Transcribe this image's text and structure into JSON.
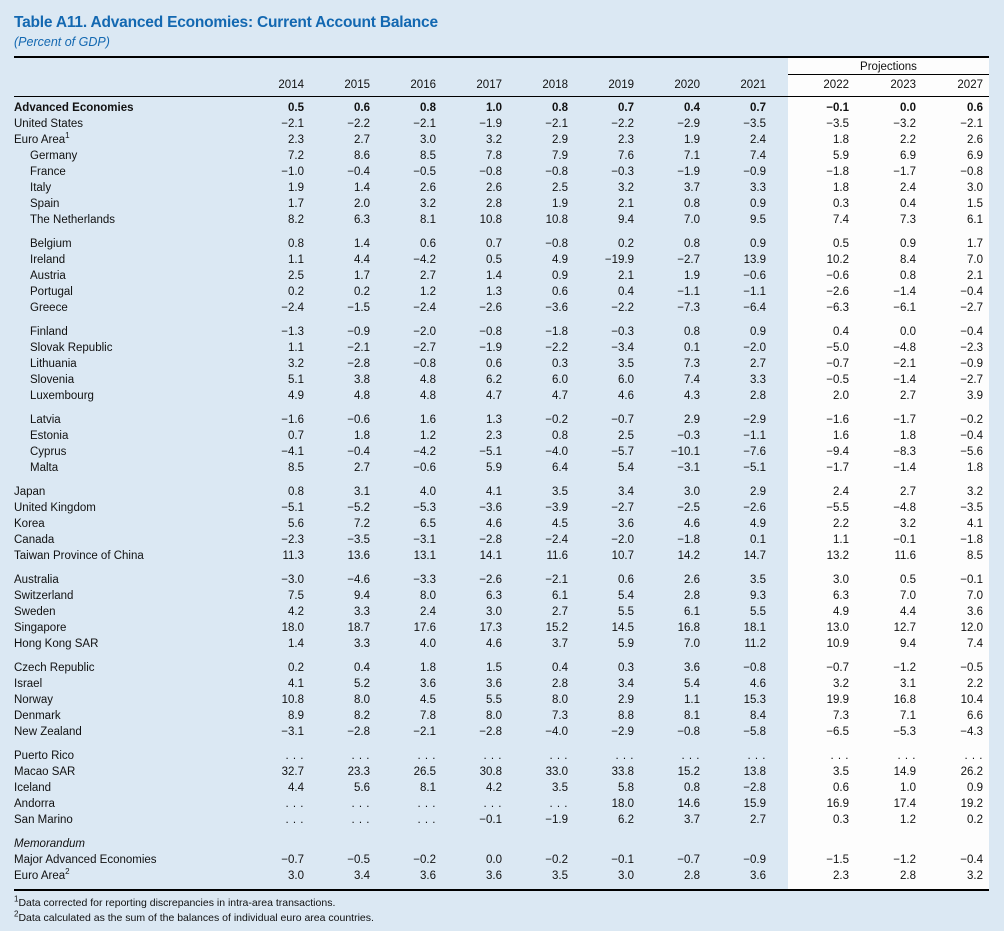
{
  "title": "Table A11. Advanced Economies: Current Account Balance",
  "subtitle": "(Percent of GDP)",
  "colors": {
    "page_background": "#dbe8f3",
    "projections_panel": "#fdfdfd",
    "title_accent": "#1368b1",
    "text": "#111111",
    "rule": "#000000"
  },
  "header": {
    "projections_label": "Projections",
    "years": [
      "2014",
      "2015",
      "2016",
      "2017",
      "2018",
      "2019",
      "2020",
      "2021"
    ],
    "projection_years": [
      "2022",
      "2023",
      "2027"
    ]
  },
  "table": {
    "columns": [
      "2014",
      "2015",
      "2016",
      "2017",
      "2018",
      "2019",
      "2020",
      "2021",
      "2022",
      "2023",
      "2027"
    ],
    "groups": [
      {
        "rows": [
          {
            "label": "Advanced Economies",
            "bold": true,
            "values": [
              "0.5",
              "0.6",
              "0.8",
              "1.0",
              "0.8",
              "0.7",
              "0.4",
              "0.7",
              "−0.1",
              "0.0",
              "0.6"
            ]
          },
          {
            "label": "United States",
            "values": [
              "−2.1",
              "−2.2",
              "−2.1",
              "−1.9",
              "−2.1",
              "−2.2",
              "−2.9",
              "−3.5",
              "−3.5",
              "−3.2",
              "−2.1"
            ]
          },
          {
            "label": "Euro Area",
            "sup": "1",
            "values": [
              "2.3",
              "2.7",
              "3.0",
              "3.2",
              "2.9",
              "2.3",
              "1.9",
              "2.4",
              "1.8",
              "2.2",
              "2.6"
            ]
          },
          {
            "label": "Germany",
            "indent": true,
            "values": [
              "7.2",
              "8.6",
              "8.5",
              "7.8",
              "7.9",
              "7.6",
              "7.1",
              "7.4",
              "5.9",
              "6.9",
              "6.9"
            ]
          },
          {
            "label": "France",
            "indent": true,
            "values": [
              "−1.0",
              "−0.4",
              "−0.5",
              "−0.8",
              "−0.8",
              "−0.3",
              "−1.9",
              "−0.9",
              "−1.8",
              "−1.7",
              "−0.8"
            ]
          },
          {
            "label": "Italy",
            "indent": true,
            "values": [
              "1.9",
              "1.4",
              "2.6",
              "2.6",
              "2.5",
              "3.2",
              "3.7",
              "3.3",
              "1.8",
              "2.4",
              "3.0"
            ]
          },
          {
            "label": "Spain",
            "indent": true,
            "values": [
              "1.7",
              "2.0",
              "3.2",
              "2.8",
              "1.9",
              "2.1",
              "0.8",
              "0.9",
              "0.3",
              "0.4",
              "1.5"
            ]
          },
          {
            "label": "The Netherlands",
            "indent": true,
            "values": [
              "8.2",
              "6.3",
              "8.1",
              "10.8",
              "10.8",
              "9.4",
              "7.0",
              "9.5",
              "7.4",
              "7.3",
              "6.1"
            ]
          }
        ]
      },
      {
        "rows": [
          {
            "label": "Belgium",
            "indent": true,
            "values": [
              "0.8",
              "1.4",
              "0.6",
              "0.7",
              "−0.8",
              "0.2",
              "0.8",
              "0.9",
              "0.5",
              "0.9",
              "1.7"
            ]
          },
          {
            "label": "Ireland",
            "indent": true,
            "values": [
              "1.1",
              "4.4",
              "−4.2",
              "0.5",
              "4.9",
              "−19.9",
              "−2.7",
              "13.9",
              "10.2",
              "8.4",
              "7.0"
            ]
          },
          {
            "label": "Austria",
            "indent": true,
            "values": [
              "2.5",
              "1.7",
              "2.7",
              "1.4",
              "0.9",
              "2.1",
              "1.9",
              "−0.6",
              "−0.6",
              "0.8",
              "2.1"
            ]
          },
          {
            "label": "Portugal",
            "indent": true,
            "values": [
              "0.2",
              "0.2",
              "1.2",
              "1.3",
              "0.6",
              "0.4",
              "−1.1",
              "−1.1",
              "−2.6",
              "−1.4",
              "−0.4"
            ]
          },
          {
            "label": "Greece",
            "indent": true,
            "values": [
              "−2.4",
              "−1.5",
              "−2.4",
              "−2.6",
              "−3.6",
              "−2.2",
              "−7.3",
              "−6.4",
              "−6.3",
              "−6.1",
              "−2.7"
            ]
          }
        ]
      },
      {
        "rows": [
          {
            "label": "Finland",
            "indent": true,
            "values": [
              "−1.3",
              "−0.9",
              "−2.0",
              "−0.8",
              "−1.8",
              "−0.3",
              "0.8",
              "0.9",
              "0.4",
              "0.0",
              "−0.4"
            ]
          },
          {
            "label": "Slovak Republic",
            "indent": true,
            "values": [
              "1.1",
              "−2.1",
              "−2.7",
              "−1.9",
              "−2.2",
              "−3.4",
              "0.1",
              "−2.0",
              "−5.0",
              "−4.8",
              "−2.3"
            ]
          },
          {
            "label": "Lithuania",
            "indent": true,
            "values": [
              "3.2",
              "−2.8",
              "−0.8",
              "0.6",
              "0.3",
              "3.5",
              "7.3",
              "2.7",
              "−0.7",
              "−2.1",
              "−0.9"
            ]
          },
          {
            "label": "Slovenia",
            "indent": true,
            "values": [
              "5.1",
              "3.8",
              "4.8",
              "6.2",
              "6.0",
              "6.0",
              "7.4",
              "3.3",
              "−0.5",
              "−1.4",
              "−2.7"
            ]
          },
          {
            "label": "Luxembourg",
            "indent": true,
            "values": [
              "4.9",
              "4.8",
              "4.8",
              "4.7",
              "4.7",
              "4.6",
              "4.3",
              "2.8",
              "2.0",
              "2.7",
              "3.9"
            ]
          }
        ]
      },
      {
        "rows": [
          {
            "label": "Latvia",
            "indent": true,
            "values": [
              "−1.6",
              "−0.6",
              "1.6",
              "1.3",
              "−0.2",
              "−0.7",
              "2.9",
              "−2.9",
              "−1.6",
              "−1.7",
              "−0.2"
            ]
          },
          {
            "label": "Estonia",
            "indent": true,
            "values": [
              "0.7",
              "1.8",
              "1.2",
              "2.3",
              "0.8",
              "2.5",
              "−0.3",
              "−1.1",
              "1.6",
              "1.8",
              "−0.4"
            ]
          },
          {
            "label": "Cyprus",
            "indent": true,
            "values": [
              "−4.1",
              "−0.4",
              "−4.2",
              "−5.1",
              "−4.0",
              "−5.7",
              "−10.1",
              "−7.6",
              "−9.4",
              "−8.3",
              "−5.6"
            ]
          },
          {
            "label": "Malta",
            "indent": true,
            "values": [
              "8.5",
              "2.7",
              "−0.6",
              "5.9",
              "6.4",
              "5.4",
              "−3.1",
              "−5.1",
              "−1.7",
              "−1.4",
              "1.8"
            ]
          }
        ]
      },
      {
        "rows": [
          {
            "label": "Japan",
            "values": [
              "0.8",
              "3.1",
              "4.0",
              "4.1",
              "3.5",
              "3.4",
              "3.0",
              "2.9",
              "2.4",
              "2.7",
              "3.2"
            ]
          },
          {
            "label": "United Kingdom",
            "values": [
              "−5.1",
              "−5.2",
              "−5.3",
              "−3.6",
              "−3.9",
              "−2.7",
              "−2.5",
              "−2.6",
              "−5.5",
              "−4.8",
              "−3.5"
            ]
          },
          {
            "label": "Korea",
            "values": [
              "5.6",
              "7.2",
              "6.5",
              "4.6",
              "4.5",
              "3.6",
              "4.6",
              "4.9",
              "2.2",
              "3.2",
              "4.1"
            ]
          },
          {
            "label": "Canada",
            "values": [
              "−2.3",
              "−3.5",
              "−3.1",
              "−2.8",
              "−2.4",
              "−2.0",
              "−1.8",
              "0.1",
              "1.1",
              "−0.1",
              "−1.8"
            ]
          },
          {
            "label": "Taiwan Province of China",
            "values": [
              "11.3",
              "13.6",
              "13.1",
              "14.1",
              "11.6",
              "10.7",
              "14.2",
              "14.7",
              "13.2",
              "11.6",
              "8.5"
            ]
          }
        ]
      },
      {
        "rows": [
          {
            "label": "Australia",
            "values": [
              "−3.0",
              "−4.6",
              "−3.3",
              "−2.6",
              "−2.1",
              "0.6",
              "2.6",
              "3.5",
              "3.0",
              "0.5",
              "−0.1"
            ]
          },
          {
            "label": "Switzerland",
            "values": [
              "7.5",
              "9.4",
              "8.0",
              "6.3",
              "6.1",
              "5.4",
              "2.8",
              "9.3",
              "6.3",
              "7.0",
              "7.0"
            ]
          },
          {
            "label": "Sweden",
            "values": [
              "4.2",
              "3.3",
              "2.4",
              "3.0",
              "2.7",
              "5.5",
              "6.1",
              "5.5",
              "4.9",
              "4.4",
              "3.6"
            ]
          },
          {
            "label": "Singapore",
            "values": [
              "18.0",
              "18.7",
              "17.6",
              "17.3",
              "15.2",
              "14.5",
              "16.8",
              "18.1",
              "13.0",
              "12.7",
              "12.0"
            ]
          },
          {
            "label": "Hong Kong SAR",
            "values": [
              "1.4",
              "3.3",
              "4.0",
              "4.6",
              "3.7",
              "5.9",
              "7.0",
              "11.2",
              "10.9",
              "9.4",
              "7.4"
            ]
          }
        ]
      },
      {
        "rows": [
          {
            "label": "Czech Republic",
            "values": [
              "0.2",
              "0.4",
              "1.8",
              "1.5",
              "0.4",
              "0.3",
              "3.6",
              "−0.8",
              "−0.7",
              "−1.2",
              "−0.5"
            ]
          },
          {
            "label": "Israel",
            "values": [
              "4.1",
              "5.2",
              "3.6",
              "3.6",
              "2.8",
              "3.4",
              "5.4",
              "4.6",
              "3.2",
              "3.1",
              "2.2"
            ]
          },
          {
            "label": "Norway",
            "values": [
              "10.8",
              "8.0",
              "4.5",
              "5.5",
              "8.0",
              "2.9",
              "1.1",
              "15.3",
              "19.9",
              "16.8",
              "10.4"
            ]
          },
          {
            "label": "Denmark",
            "values": [
              "8.9",
              "8.2",
              "7.8",
              "8.0",
              "7.3",
              "8.8",
              "8.1",
              "8.4",
              "7.3",
              "7.1",
              "6.6"
            ]
          },
          {
            "label": "New Zealand",
            "values": [
              "−3.1",
              "−2.8",
              "−2.1",
              "−2.8",
              "−4.0",
              "−2.9",
              "−0.8",
              "−5.8",
              "−6.5",
              "−5.3",
              "−4.3"
            ]
          }
        ]
      },
      {
        "rows": [
          {
            "label": "Puerto Rico",
            "values": [
              ". . .",
              ". . .",
              ". . .",
              ". . .",
              ". . .",
              ". . .",
              ". . .",
              ". . .",
              ". . .",
              ". . .",
              ". . ."
            ]
          },
          {
            "label": "Macao SAR",
            "values": [
              "32.7",
              "23.3",
              "26.5",
              "30.8",
              "33.0",
              "33.8",
              "15.2",
              "13.8",
              "3.5",
              "14.9",
              "26.2"
            ]
          },
          {
            "label": "Iceland",
            "values": [
              "4.4",
              "5.6",
              "8.1",
              "4.2",
              "3.5",
              "5.8",
              "0.8",
              "−2.8",
              "0.6",
              "1.0",
              "0.9"
            ]
          },
          {
            "label": "Andorra",
            "values": [
              ". . .",
              ". . .",
              ". . .",
              ". . .",
              ". . .",
              "18.0",
              "14.6",
              "15.9",
              "16.9",
              "17.4",
              "19.2"
            ]
          },
          {
            "label": "San Marino",
            "values": [
              ". . .",
              ". . .",
              ". . .",
              "−0.1",
              "−1.9",
              "6.2",
              "3.7",
              "2.7",
              "0.3",
              "1.2",
              "0.2"
            ]
          }
        ]
      },
      {
        "rows": [
          {
            "label": "Memorandum",
            "italic": true,
            "values": null
          },
          {
            "label": "Major Advanced Economies",
            "values": [
              "−0.7",
              "−0.5",
              "−0.2",
              "0.0",
              "−0.2",
              "−0.1",
              "−0.7",
              "−0.9",
              "−1.5",
              "−1.2",
              "−0.4"
            ]
          },
          {
            "label": "Euro Area",
            "sup": "2",
            "values": [
              "3.0",
              "3.4",
              "3.6",
              "3.6",
              "3.5",
              "3.0",
              "2.8",
              "3.6",
              "2.3",
              "2.8",
              "3.2"
            ]
          }
        ]
      }
    ]
  },
  "footnotes": [
    {
      "sup": "1",
      "text": "Data corrected for reporting discrepancies in intra-area transactions."
    },
    {
      "sup": "2",
      "text": "Data calculated as the sum of the balances of individual euro area countries."
    }
  ]
}
